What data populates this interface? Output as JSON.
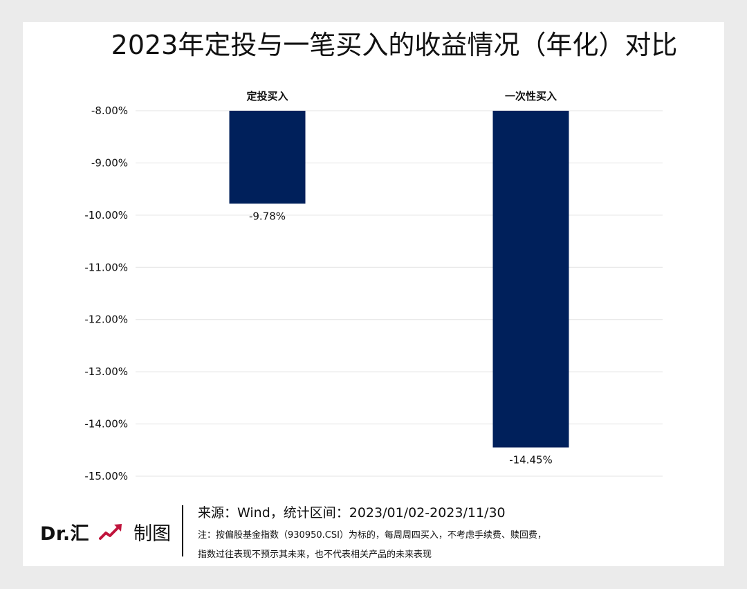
{
  "chart_data": {
    "type": "bar",
    "title": "2023年定投与一笔买入的收益情况（年化）对比",
    "categories": [
      "定投买入",
      "一次性买入"
    ],
    "values": [
      -9.78,
      -14.45
    ],
    "value_labels": [
      "-9.78%",
      "-14.45%"
    ],
    "ylim": [
      -15,
      -8
    ],
    "yticks": [
      -8,
      -9,
      -10,
      -11,
      -12,
      -13,
      -14,
      -15
    ],
    "ytick_labels": [
      "-8.00%",
      "-9.00%",
      "-10.00%",
      "-11.00%",
      "-12.00%",
      "-13.00%",
      "-14.00%",
      "-15.00%"
    ],
    "xlabel": "",
    "ylabel": "",
    "grid": true,
    "category_labels_position": "top",
    "bar_color": "#00205b"
  },
  "footer": {
    "brand": "Dr.汇",
    "made": "制图",
    "brand_icon": "trend-up-arrow-icon",
    "brand_icon_color": "#c0143c",
    "source": "来源：Wind，统计区间：2023/01/02-2023/11/30",
    "note_line1": "注：按偏股基金指数（930950.CSI）为标的，每周周四买入，不考虑手续费、赎回费，",
    "note_line2": "指数过往表现不预示其未来，也不代表相关产品的未来表现"
  }
}
